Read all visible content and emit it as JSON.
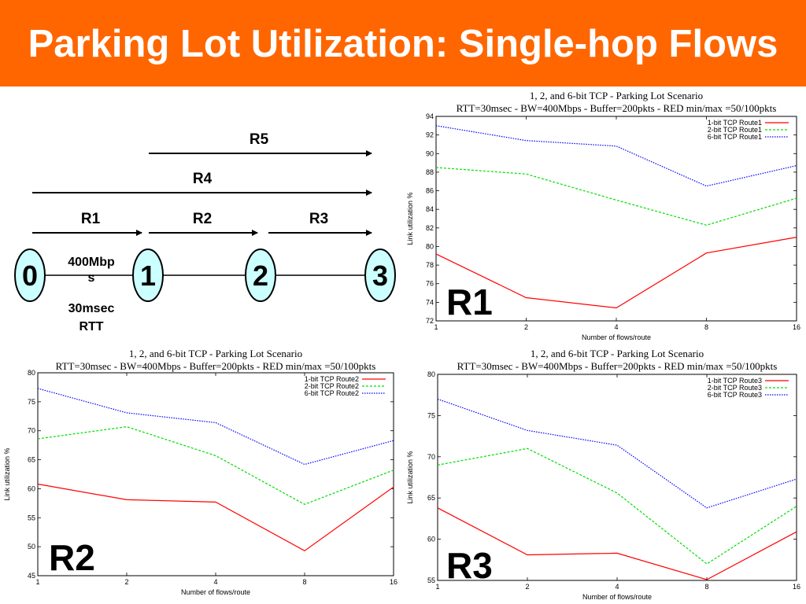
{
  "header": {
    "title": "Parking Lot Utilization: Single-hop Flows",
    "bg": "#ff6600"
  },
  "diagram": {
    "routes": [
      "R5",
      "R4",
      "R1",
      "R2",
      "R3"
    ],
    "nodes": [
      "0",
      "1",
      "2",
      "3"
    ],
    "link_bw": "400Mbp s",
    "link_bw_line1": "400Mbp",
    "link_bw_line2": "s",
    "link_rtt_line1": "30msec",
    "link_rtt_line2": "RTT",
    "node_fill": "#ccffff"
  },
  "chart_data": [
    {
      "type": "line",
      "panel_label": "R1",
      "title": "1, 2, and 6-bit TCP - Parking Lot Scenario",
      "subtitle": "RTT=30msec - BW=400Mbps - Buffer=200pkts - RED min/max =50/100pkts",
      "xlabel": "Number of flows/route",
      "ylabel": "Link utilization %",
      "x": [
        "1",
        "2",
        "4",
        "8",
        "16"
      ],
      "ylim": [
        72,
        94
      ],
      "yticks": [
        72,
        74,
        76,
        78,
        80,
        82,
        84,
        86,
        88,
        90,
        92,
        94
      ],
      "legend_position": "top-right",
      "series": [
        {
          "name": "1-bit TCP Route1",
          "color": "#ff0000",
          "dash": "",
          "values": [
            79.2,
            74.5,
            73.4,
            79.3,
            81.0
          ]
        },
        {
          "name": "2-bit TCP Route1",
          "color": "#00dd00",
          "dash": "3,2",
          "values": [
            88.5,
            87.8,
            85.0,
            82.3,
            85.2
          ]
        },
        {
          "name": "6-bit TCP Route1",
          "color": "#0000ff",
          "dash": "1.5,1.5",
          "values": [
            93.0,
            91.4,
            90.8,
            86.5,
            88.7
          ]
        }
      ]
    },
    {
      "type": "line",
      "panel_label": "R2",
      "title": "1, 2, and 6-bit TCP - Parking Lot Scenario",
      "subtitle": "RTT=30msec - BW=400Mbps - Buffer=200pkts - RED min/max =50/100pkts",
      "xlabel": "Number of flows/route",
      "ylabel": "Link utilization %",
      "x": [
        "1",
        "2",
        "4",
        "8",
        "16"
      ],
      "ylim": [
        45,
        80
      ],
      "yticks": [
        45,
        50,
        55,
        60,
        65,
        70,
        75,
        80
      ],
      "legend_position": "top-right",
      "series": [
        {
          "name": "1-bit TCP Route2",
          "color": "#ff0000",
          "dash": "",
          "values": [
            60.8,
            58.1,
            57.7,
            49.3,
            60.3
          ]
        },
        {
          "name": "2-bit TCP Route2",
          "color": "#00dd00",
          "dash": "3,2",
          "values": [
            68.6,
            70.7,
            65.7,
            57.3,
            63.2
          ]
        },
        {
          "name": "6-bit TCP Route2",
          "color": "#0000ff",
          "dash": "1.5,1.5",
          "values": [
            77.3,
            73.1,
            71.4,
            64.2,
            68.3
          ]
        }
      ]
    },
    {
      "type": "line",
      "panel_label": "R3",
      "title": "1, 2, and 6-bit TCP - Parking Lot Scenario",
      "subtitle": "RTT=30msec - BW=400Mbps - Buffer=200pkts - RED min/max =50/100pkts",
      "xlabel": "Number of flows/route",
      "ylabel": "Link utilization %",
      "x": [
        "1",
        "2",
        "4",
        "8",
        "16"
      ],
      "ylim": [
        55,
        80
      ],
      "yticks": [
        55,
        60,
        65,
        70,
        75,
        80
      ],
      "legend_position": "top-right",
      "series": [
        {
          "name": "1-bit TCP Route3",
          "color": "#ff0000",
          "dash": "",
          "values": [
            63.8,
            58.1,
            58.3,
            55.1,
            60.9
          ]
        },
        {
          "name": "2-bit TCP Route3",
          "color": "#00dd00",
          "dash": "3,2",
          "values": [
            69.0,
            71.0,
            65.6,
            57.0,
            64.0
          ]
        },
        {
          "name": "6-bit TCP Route3",
          "color": "#0000ff",
          "dash": "1.5,1.5",
          "values": [
            77.0,
            73.2,
            71.4,
            63.8,
            67.3
          ]
        }
      ]
    }
  ]
}
